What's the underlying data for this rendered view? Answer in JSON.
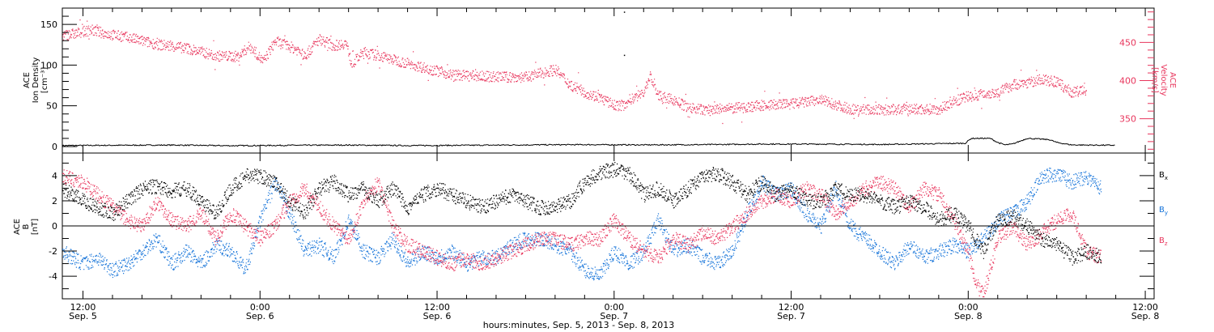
{
  "colors": {
    "density": "#000000",
    "velocity": "#e8365d",
    "bx": "#000000",
    "by": "#1473d9",
    "bz": "#e8365d",
    "frame": "#000000"
  },
  "chart_data": [
    {
      "type": "scatter",
      "panel": "top",
      "xlabel": "hours:minutes, Sep.  5, 2013 - Sep.  8, 2013",
      "x_unit": "hours since Sep. 5 00:00",
      "xlim": [
        10.6,
        84.6
      ],
      "x_ticks": [
        {
          "x": 12,
          "time": "12:00",
          "day": "Sep. 5"
        },
        {
          "x": 24,
          "time": "0:00",
          "day": "Sep. 6"
        },
        {
          "x": 36,
          "time": "12:00",
          "day": "Sep. 6"
        },
        {
          "x": 48,
          "time": "0:00",
          "day": "Sep. 7"
        },
        {
          "x": 60,
          "time": "12:00",
          "day": "Sep. 7"
        },
        {
          "x": 72,
          "time": "0:00",
          "day": "Sep. 8"
        },
        {
          "x": 84,
          "time": "12:00",
          "day": "Sep. 8"
        }
      ],
      "left_axis": {
        "label_lines": [
          "ACE",
          "Ion Density",
          "[cm⁻³]"
        ],
        "ylim": [
          -8,
          170
        ],
        "ticks": [
          0,
          50,
          100,
          150
        ]
      },
      "right_axis": {
        "label_lines": [
          "ACE",
          "Velocity",
          "[km/s]"
        ],
        "ylim": [
          305,
          495
        ],
        "ticks": [
          350,
          400,
          450
        ]
      },
      "series": [
        {
          "name": "Ion Density",
          "axis": "left",
          "x": [
            10.6,
            14,
            18,
            22,
            26,
            30,
            34,
            38,
            42,
            46,
            50,
            54,
            58,
            62,
            66,
            70,
            71.8,
            72.2,
            73.5,
            74,
            74.5,
            75,
            76,
            77.5,
            78,
            79,
            82
          ],
          "values": [
            1.2,
            1.5,
            1.8,
            1.0,
            1.5,
            1.8,
            1.2,
            1.5,
            2.0,
            2.3,
            2.0,
            2.3,
            3.0,
            3.0,
            2.5,
            3.5,
            4.0,
            10.0,
            10.0,
            5.0,
            2.0,
            3.0,
            10.0,
            8.5,
            5.0,
            2.0,
            1.5
          ]
        },
        {
          "name": "Velocity",
          "axis": "right",
          "x": [
            10.6,
            11.5,
            12.5,
            13.5,
            15,
            17,
            19,
            21,
            22.5,
            23.3,
            24.2,
            25,
            26,
            26.6,
            27,
            28,
            29,
            29.8,
            30.2,
            31,
            33,
            35,
            37,
            39,
            41,
            42,
            43,
            44,
            45,
            46,
            47,
            48,
            48.6,
            49,
            50,
            50.4,
            51,
            52,
            53,
            54,
            56,
            58,
            60,
            62,
            64,
            66,
            68,
            70,
            71,
            72,
            73,
            74,
            75,
            76,
            77,
            78,
            79,
            80
          ],
          "values": [
            460,
            462,
            467,
            462,
            457,
            448,
            443,
            433,
            432,
            446,
            425,
            452,
            445,
            440,
            432,
            455,
            446,
            450,
            422,
            438,
            428,
            418,
            408,
            406,
            405,
            405,
            410,
            415,
            395,
            385,
            378,
            368,
            368,
            375,
            385,
            407,
            380,
            375,
            365,
            362,
            364,
            368,
            370,
            375,
            363,
            362,
            363,
            363,
            373,
            380,
            383,
            385,
            395,
            398,
            402,
            398,
            385,
            388
          ]
        }
      ],
      "annotations": [
        {
          "type": "point",
          "series": "Density",
          "x": 48.7,
          "value": 165
        },
        {
          "type": "point",
          "series": "Density",
          "x": 48.7,
          "value": 112
        }
      ]
    },
    {
      "type": "scatter",
      "panel": "bottom",
      "xlim": [
        10.6,
        84.6
      ],
      "left_axis": {
        "label_lines": [
          "ACE",
          "B",
          "[nT]"
        ],
        "ylim": [
          -5.8,
          5.8
        ],
        "ticks": [
          -4,
          -2,
          0,
          2,
          4
        ]
      },
      "zero_line": true,
      "legend": [
        "Bx",
        "By",
        "Bz"
      ],
      "series": [
        {
          "name": "Bx",
          "x": [
            10.6,
            12,
            13,
            14,
            15,
            16,
            17,
            18,
            19,
            20,
            21,
            22,
            23,
            24,
            25,
            26,
            27,
            28,
            29,
            30,
            31,
            32,
            33,
            34,
            35,
            36,
            37,
            38,
            39,
            40,
            41,
            42,
            43,
            44,
            45,
            46,
            47,
            48,
            49,
            50,
            51,
            52,
            53,
            54,
            55,
            56,
            57,
            58,
            59,
            60,
            61,
            62,
            63,
            64,
            65,
            66,
            67,
            68,
            69,
            70,
            71,
            72,
            73,
            74,
            75,
            76,
            77,
            78,
            79,
            80,
            81
          ],
          "values": [
            3.0,
            2.0,
            1.5,
            1.0,
            2.0,
            3.0,
            3.2,
            2.8,
            3.0,
            2.0,
            1.0,
            3.0,
            4.0,
            4.0,
            3.5,
            2.0,
            1.0,
            3.0,
            3.5,
            2.5,
            3.0,
            2.0,
            3.0,
            1.5,
            2.5,
            3.0,
            2.5,
            2.0,
            1.5,
            2.0,
            2.5,
            2.0,
            1.5,
            1.5,
            2.0,
            3.5,
            4.3,
            4.5,
            4.2,
            2.5,
            3.0,
            2.0,
            3.0,
            4.0,
            4.2,
            3.5,
            2.5,
            3.5,
            2.5,
            3.0,
            2.0,
            2.0,
            3.0,
            2.5,
            2.5,
            2.0,
            1.5,
            2.0,
            1.5,
            0.5,
            1.0,
            0.0,
            -2.0,
            0.5,
            0.8,
            0.0,
            -1.0,
            -1.5,
            -2.5,
            -2.0,
            -2.5
          ]
        },
        {
          "name": "By",
          "x": [
            10.6,
            12,
            13,
            14,
            15,
            16,
            17,
            18,
            19,
            20,
            21,
            22,
            23,
            24,
            25,
            26,
            27,
            28,
            29,
            30,
            31,
            32,
            33,
            34,
            35,
            36,
            37,
            38,
            39,
            40,
            41,
            42,
            43,
            44,
            45,
            46,
            47,
            48,
            49,
            50,
            51,
            52,
            53,
            54,
            55,
            56,
            57,
            58,
            59,
            60,
            61,
            62,
            63,
            64,
            65,
            66,
            67,
            68,
            69,
            70,
            71,
            72,
            73,
            74,
            75,
            76,
            77,
            78,
            79,
            80,
            81
          ],
          "values": [
            -2.0,
            -3.0,
            -2.5,
            -3.5,
            -3.0,
            -2.0,
            -1.0,
            -3.0,
            -2.0,
            -3.0,
            -1.5,
            -2.0,
            -3.5,
            0.5,
            3.5,
            1.0,
            -2.0,
            -1.5,
            -2.5,
            0.5,
            -2.0,
            -2.5,
            -1.0,
            -3.0,
            -2.0,
            -2.5,
            -2.0,
            -3.0,
            -2.5,
            -2.5,
            -1.5,
            -1.0,
            -1.0,
            -1.5,
            -2.0,
            -3.5,
            -4.0,
            -2.0,
            -3.0,
            -2.0,
            0.5,
            -2.0,
            -1.5,
            -2.5,
            -3.0,
            -2.0,
            1.0,
            3.5,
            2.5,
            3.0,
            1.0,
            0.0,
            3.0,
            0.0,
            -1.0,
            -2.0,
            -3.0,
            -1.5,
            -2.5,
            -2.0,
            -1.5,
            -2.0,
            -1.0,
            0.5,
            1.0,
            2.0,
            4.0,
            4.2,
            3.5,
            4.0,
            3.0
          ]
        },
        {
          "name": "Bz",
          "x": [
            10.6,
            12,
            13,
            14,
            15,
            16,
            17,
            18,
            19,
            20,
            21,
            22,
            23,
            24,
            25,
            26,
            27,
            28,
            29,
            30,
            31,
            32,
            33,
            34,
            35,
            36,
            37,
            38,
            39,
            40,
            41,
            42,
            43,
            44,
            45,
            46,
            47,
            48,
            49,
            50,
            51,
            52,
            53,
            54,
            55,
            56,
            57,
            58,
            59,
            60,
            61,
            62,
            63,
            64,
            65,
            66,
            67,
            68,
            69,
            70,
            71,
            72,
            72.5,
            73,
            74,
            75,
            76,
            77,
            78,
            79,
            80,
            81
          ],
          "values": [
            4.0,
            3.5,
            2.5,
            1.5,
            0.5,
            0.0,
            2.0,
            0.5,
            0.0,
            1.0,
            -1.0,
            1.0,
            0.0,
            -1.0,
            0.0,
            2.0,
            3.0,
            1.5,
            0.0,
            -1.0,
            2.0,
            3.5,
            0.0,
            -1.5,
            -2.0,
            -2.5,
            -3.0,
            -2.5,
            -3.0,
            -2.5,
            -2.0,
            -1.5,
            -1.0,
            -1.0,
            -1.5,
            -1.0,
            -1.0,
            0.5,
            -1.0,
            -2.0,
            -2.5,
            -1.0,
            -1.5,
            -0.5,
            -1.0,
            0.0,
            1.0,
            2.0,
            2.5,
            2.0,
            3.0,
            2.5,
            1.0,
            2.0,
            3.0,
            3.5,
            3.0,
            1.5,
            3.0,
            2.5,
            0.5,
            -2.0,
            -4.5,
            -5.5,
            -1.0,
            0.0,
            -1.5,
            -0.5,
            0.5,
            1.0,
            -2.0,
            -2.5
          ]
        }
      ]
    }
  ]
}
